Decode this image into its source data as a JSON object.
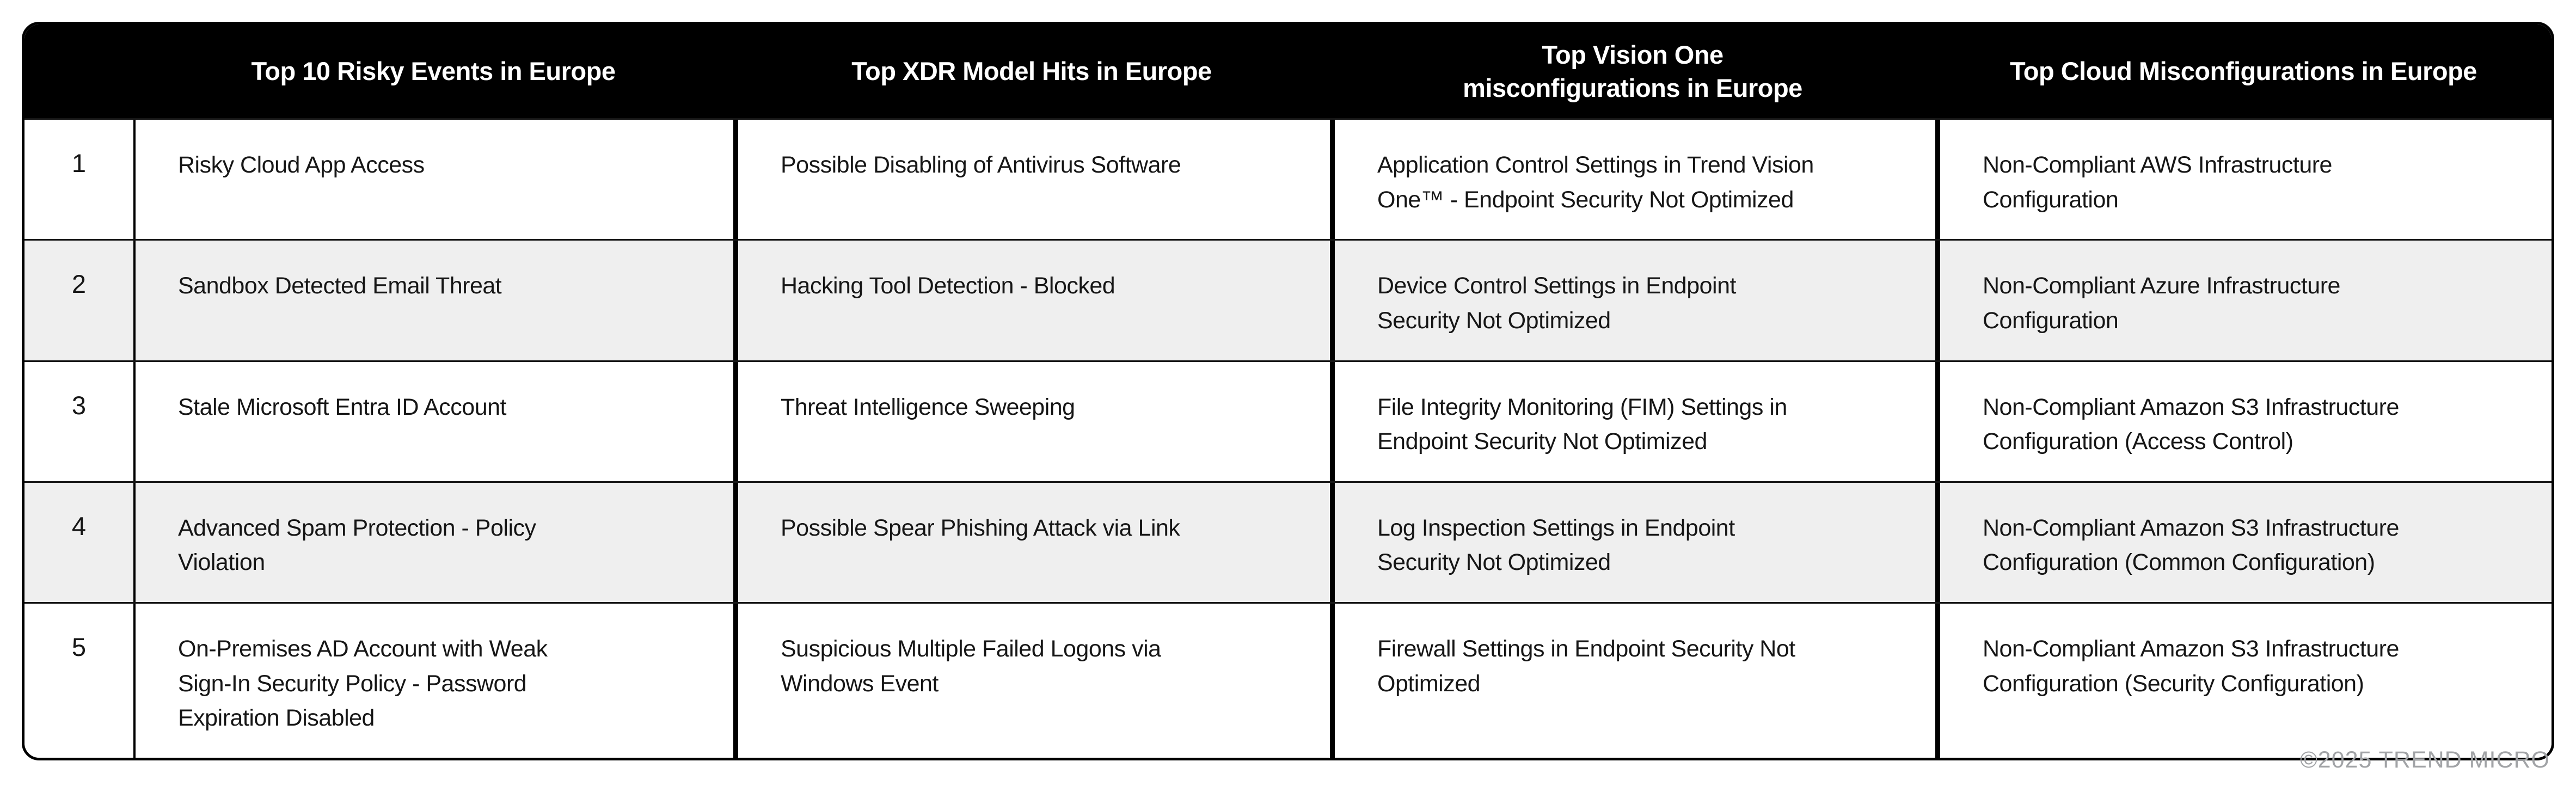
{
  "chart_data": {
    "type": "table",
    "columns": [
      "",
      "Top 10 Risky Events in Europe",
      "Top XDR Model Hits in Europe",
      "Top Vision One\nmisconfigurations in Europe",
      "Top Cloud Misconfigurations in Europe"
    ],
    "rows": [
      [
        "1",
        "Risky Cloud App Access",
        "Possible Disabling of Antivirus Software",
        "Application Control Settings in Trend Vision\nOne™ - Endpoint Security Not Optimized",
        "Non-Compliant AWS Infrastructure\nConfiguration"
      ],
      [
        "2",
        "Sandbox Detected Email Threat",
        "Hacking Tool Detection - Blocked",
        "Device Control Settings in Endpoint\nSecurity Not Optimized",
        "Non-Compliant Azure Infrastructure\nConfiguration"
      ],
      [
        "3",
        "Stale Microsoft Entra ID Account",
        "Threat Intelligence Sweeping",
        "File Integrity Monitoring (FIM) Settings in\nEndpoint Security Not Optimized",
        "Non-Compliant Amazon S3 Infrastructure\nConfiguration (Access Control)"
      ],
      [
        "4",
        "Advanced Spam Protection - Policy\nViolation",
        "Possible Spear Phishing Attack via Link",
        "Log Inspection Settings in Endpoint\nSecurity Not Optimized",
        "Non-Compliant Amazon S3 Infrastructure\nConfiguration (Common Configuration)"
      ],
      [
        "5",
        "On-Premises AD Account with Weak\nSign-In Security Policy - Password\nExpiration Disabled",
        "Suspicious Multiple Failed Logons via\nWindows Event",
        "Firewall Settings in Endpoint Security Not\nOptimized",
        "Non-Compliant Amazon S3 Infrastructure\nConfiguration (Security Configuration)"
      ]
    ],
    "layout": {
      "legend": "none",
      "grid": "on",
      "header_style": "black band, white bold centered text, rounded top corners",
      "alternate_row_shading": "rows 2 and 4 shaded"
    }
  },
  "colors": {
    "header_bg": "#000000",
    "header_text": "#ffffff",
    "body_text": "#161616",
    "row_bg": "#ffffff",
    "row_alt_bg": "#efefef",
    "border": "#000000",
    "footer_text": "#a1a3a6"
  },
  "footer": {
    "copyright": "©2025 TREND MICRO"
  }
}
